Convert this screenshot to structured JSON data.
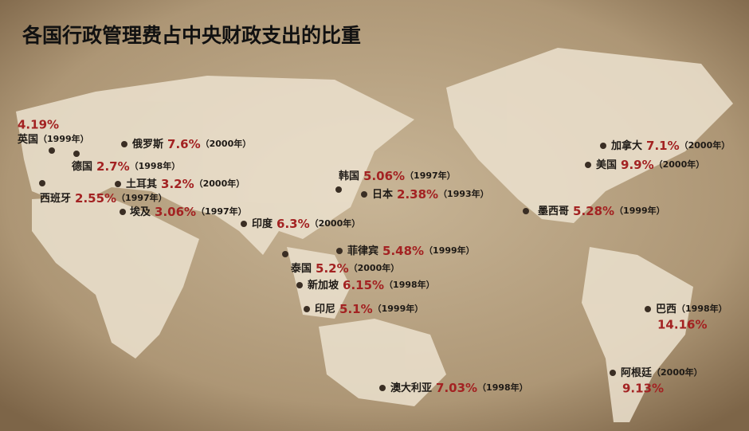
{
  "title": "各国行政管理费占中央财政支出的比重",
  "countries": [
    {
      "name": "英国",
      "value": "4.19%",
      "year": "（1999年）"
    },
    {
      "name": "德国",
      "value": "2.7%",
      "year": "（1998年）"
    },
    {
      "name": "俄罗斯",
      "value": "7.6%",
      "year": "（2000年）"
    },
    {
      "name": "西班牙",
      "value": "2.55%",
      "year": "（1997年）"
    },
    {
      "name": "土耳其",
      "value": "3.2%",
      "year": "（2000年）"
    },
    {
      "name": "埃及",
      "value": "3.06%",
      "year": "（1997年）"
    },
    {
      "name": "印度",
      "value": "6.3%",
      "year": "（2000年）"
    },
    {
      "name": "韩国",
      "value": "5.06%",
      "year": "（1997年）"
    },
    {
      "name": "日本",
      "value": "2.38%",
      "year": "（1993年）"
    },
    {
      "name": "菲律宾",
      "value": "5.48%",
      "year": "（1999年）"
    },
    {
      "name": "泰国",
      "value": "5.2%",
      "year": "（2000年）"
    },
    {
      "name": "新加坡",
      "value": "6.15%",
      "year": "（1998年）"
    },
    {
      "name": "印尼",
      "value": "5.1%",
      "year": "（1999年）"
    },
    {
      "name": "澳大利亚",
      "value": "7.03%",
      "year": "（1998年）"
    },
    {
      "name": "加拿大",
      "value": "7.1%",
      "year": "（2000年）"
    },
    {
      "name": "美国",
      "value": "9.9%",
      "year": "（2000年）"
    },
    {
      "name": "墨西哥",
      "value": "5.28%",
      "year": "（1999年）"
    },
    {
      "name": "巴西",
      "value": "14.16%",
      "year": "（1998年）"
    },
    {
      "name": "阿根廷",
      "value": "9.13%",
      "year": "（2000年）"
    }
  ]
}
